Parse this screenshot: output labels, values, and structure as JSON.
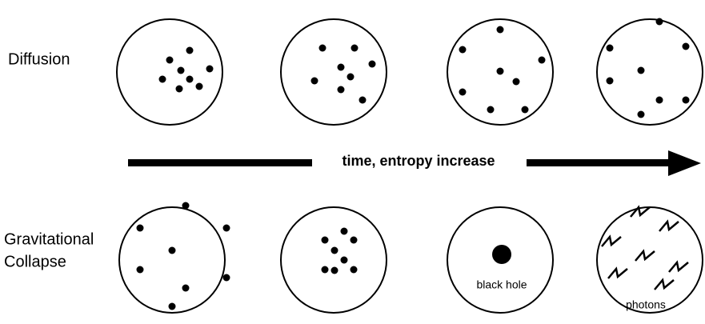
{
  "rows": [
    {
      "label": [
        "Diffusion"
      ]
    },
    {
      "label": [
        "Gravitational",
        "Collapse"
      ]
    }
  ],
  "arrow": {
    "label": "time, entropy increase"
  },
  "annotations": {
    "black_hole": "black hole",
    "photons": "photons"
  }
}
